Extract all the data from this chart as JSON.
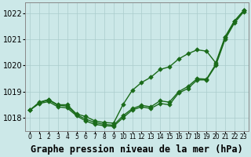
{
  "xlabel": "Graphe pression niveau de la mer (hPa)",
  "background_color": "#cce8e8",
  "grid_color": "#aacccc",
  "line_color": "#1a6b1a",
  "ylim": [
    1017.5,
    1022.4
  ],
  "xlim": [
    -0.5,
    23.5
  ],
  "yticks": [
    1018,
    1019,
    1020,
    1021,
    1022
  ],
  "xticks": [
    0,
    1,
    2,
    3,
    4,
    5,
    6,
    7,
    8,
    9,
    10,
    11,
    12,
    13,
    14,
    15,
    16,
    17,
    18,
    19,
    20,
    21,
    22,
    23
  ],
  "line_top": [
    1018.3,
    1018.6,
    1018.7,
    1018.5,
    1018.5,
    1018.15,
    1018.05,
    1017.88,
    1017.82,
    1017.8,
    1018.5,
    1019.0,
    1019.3,
    1019.5,
    1019.8,
    1019.9,
    1020.2,
    1020.4,
    1020.6,
    1020.5,
    1020.1,
    1021.1,
    1021.7,
    1022.1
  ],
  "line_mid": [
    1018.3,
    1018.58,
    1018.68,
    1018.48,
    1018.45,
    1018.12,
    1017.95,
    1017.82,
    1017.75,
    1017.72,
    1018.1,
    1018.35,
    1018.48,
    1018.42,
    1018.65,
    1018.6,
    1019.0,
    1019.2,
    1019.5,
    1019.48,
    1020.05,
    1021.05,
    1021.68,
    1022.1
  ],
  "line_bot": [
    1018.3,
    1018.55,
    1018.62,
    1018.42,
    1018.38,
    1018.08,
    1017.88,
    1017.75,
    1017.7,
    1017.68,
    1018.0,
    1018.3,
    1018.42,
    1018.36,
    1018.55,
    1018.5,
    1018.95,
    1019.12,
    1019.45,
    1019.45,
    1020.0,
    1021.0,
    1021.62,
    1022.05
  ],
  "marker_size": 2.8,
  "line_width": 1.0,
  "xlabel_fontsize": 8.5,
  "ytick_fontsize": 7,
  "xtick_fontsize": 5.5
}
